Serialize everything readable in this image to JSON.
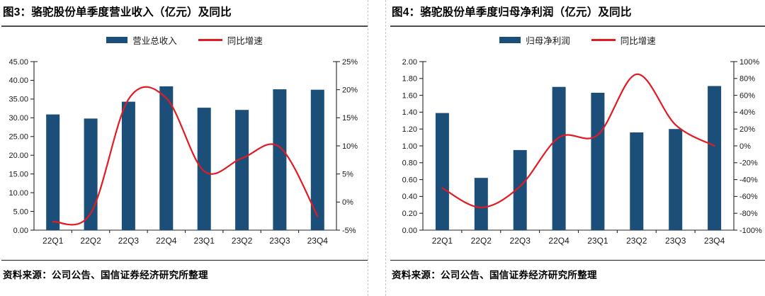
{
  "figures": [
    {
      "title": "图3：骆驼股份单季度营业收入（亿元）及同比",
      "legend_bar": "营业总收入",
      "legend_line": "同比增速",
      "source": "资料来源：公司公告、国信证券经济研究所整理"
    },
    {
      "title": "图4：骆驼股份单季度归母净利润（亿元）及同比",
      "legend_bar": "归母净利润",
      "legend_line": "同比增速",
      "source": "资料来源：公司公告、国信证券经济研究所整理"
    }
  ],
  "colors": {
    "bar": "#1b4e79",
    "line": "#e21b23",
    "axis": "#262626",
    "title_rule": "#4d4d4d",
    "source_rule": "#1a1a1a",
    "panel_divider_dashed": "#c6c6c6"
  },
  "chart_data": [
    {
      "type": "bar+line",
      "title": "图3：骆驼股份单季度营业收入（亿元）及同比",
      "categories": [
        "22Q1",
        "22Q2",
        "22Q3",
        "22Q4",
        "23Q1",
        "23Q2",
        "23Q3",
        "23Q4"
      ],
      "series": [
        {
          "name": "营业总收入",
          "type": "bar",
          "axis": "left",
          "unit": "亿元",
          "values": [
            30.9,
            29.8,
            34.3,
            38.4,
            32.7,
            32.1,
            37.6,
            37.5
          ]
        },
        {
          "name": "同比增速",
          "type": "line",
          "axis": "right",
          "unit": "%",
          "values": [
            -3.5,
            -2.0,
            18.3,
            18.5,
            5.5,
            7.8,
            9.8,
            -2.5
          ]
        }
      ],
      "left_axis": {
        "min": 0,
        "max": 45,
        "step": 5,
        "decimals": 2
      },
      "right_axis": {
        "min": -5,
        "max": 25,
        "step": 5,
        "suffix": "%"
      },
      "grid": false,
      "legend_position": "top"
    },
    {
      "type": "bar+line",
      "title": "图4：骆驼股份单季度归母净利润（亿元）及同比",
      "categories": [
        "22Q1",
        "22Q2",
        "22Q3",
        "22Q4",
        "23Q1",
        "23Q2",
        "23Q3",
        "23Q4"
      ],
      "series": [
        {
          "name": "归母净利润",
          "type": "bar",
          "axis": "left",
          "unit": "亿元",
          "values": [
            1.39,
            0.62,
            0.95,
            1.7,
            1.63,
            1.16,
            1.2,
            1.71
          ]
        },
        {
          "name": "同比增速",
          "type": "line",
          "axis": "right",
          "unit": "%",
          "values": [
            -50,
            -73,
            -48,
            10,
            13,
            85,
            25,
            0
          ]
        }
      ],
      "left_axis": {
        "min": 0,
        "max": 2,
        "step": 0.2,
        "decimals": 2
      },
      "right_axis": {
        "min": -100,
        "max": 100,
        "step": 20,
        "suffix": "%"
      },
      "grid": false,
      "legend_position": "top"
    }
  ]
}
